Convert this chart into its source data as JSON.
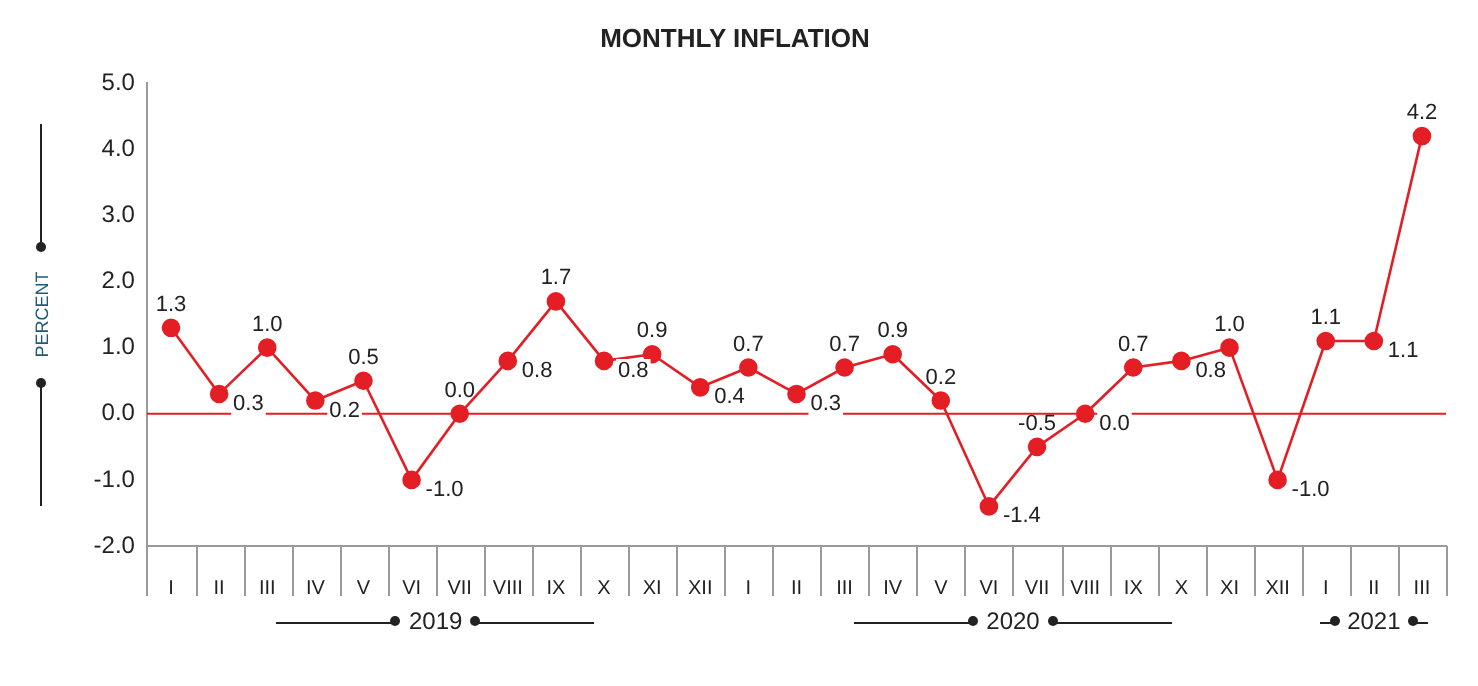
{
  "chart_data": {
    "type": "line",
    "title": "MONTHLY INFLATION",
    "ylabel": "PERCENT",
    "categories": [
      "I",
      "II",
      "III",
      "IV",
      "V",
      "VI",
      "VII",
      "VIII",
      "IX",
      "X",
      "XI",
      "XII",
      "I",
      "II",
      "III",
      "IV",
      "V",
      "VI",
      "VII",
      "VIII",
      "IX",
      "X",
      "XI",
      "XII",
      "I",
      "II",
      "III"
    ],
    "series": [
      {
        "color": "#e31e24",
        "values": [
          1.3,
          0.3,
          1.0,
          0.2,
          0.5,
          -1.0,
          0.0,
          0.8,
          1.7,
          0.8,
          0.9,
          0.4,
          0.7,
          0.3,
          0.7,
          0.9,
          0.2,
          -1.4,
          -0.5,
          0.0,
          0.7,
          0.8,
          1.0,
          -1.0,
          1.1,
          1.1,
          4.2
        ],
        "value_labels": [
          "1.3",
          "0.3",
          "1.0",
          "0.2",
          "0.5",
          "-1.0",
          "0.0",
          "0.8",
          "1.7",
          "0.8",
          "0.9",
          "0.4",
          "0.7",
          "0.3",
          "0.7",
          "0.9",
          "0.2",
          "-1.4",
          "-0.5",
          "0.0",
          "0.7",
          "0.8",
          "1.0",
          "-1.0",
          "1.1",
          "1.1",
          "4.2"
        ]
      }
    ],
    "ylim": [
      -2,
      5
    ],
    "yticks": [
      {
        "value": -2,
        "label": "-2.0"
      },
      {
        "value": -1,
        "label": "-1.0"
      },
      {
        "value": 0,
        "label": "0.0"
      },
      {
        "value": 1,
        "label": "1.0"
      },
      {
        "value": 2,
        "label": "2.0"
      },
      {
        "value": 3,
        "label": "3.0"
      },
      {
        "value": 4,
        "label": "4.0"
      },
      {
        "value": 5,
        "label": "5.0"
      }
    ],
    "ref_lines": [
      {
        "axis": "y",
        "value": 0,
        "color": "#e31e24"
      }
    ],
    "annotations": [
      "2019",
      "2020",
      "2021"
    ],
    "marker": "circle",
    "line_style": "solid",
    "legend": false
  }
}
